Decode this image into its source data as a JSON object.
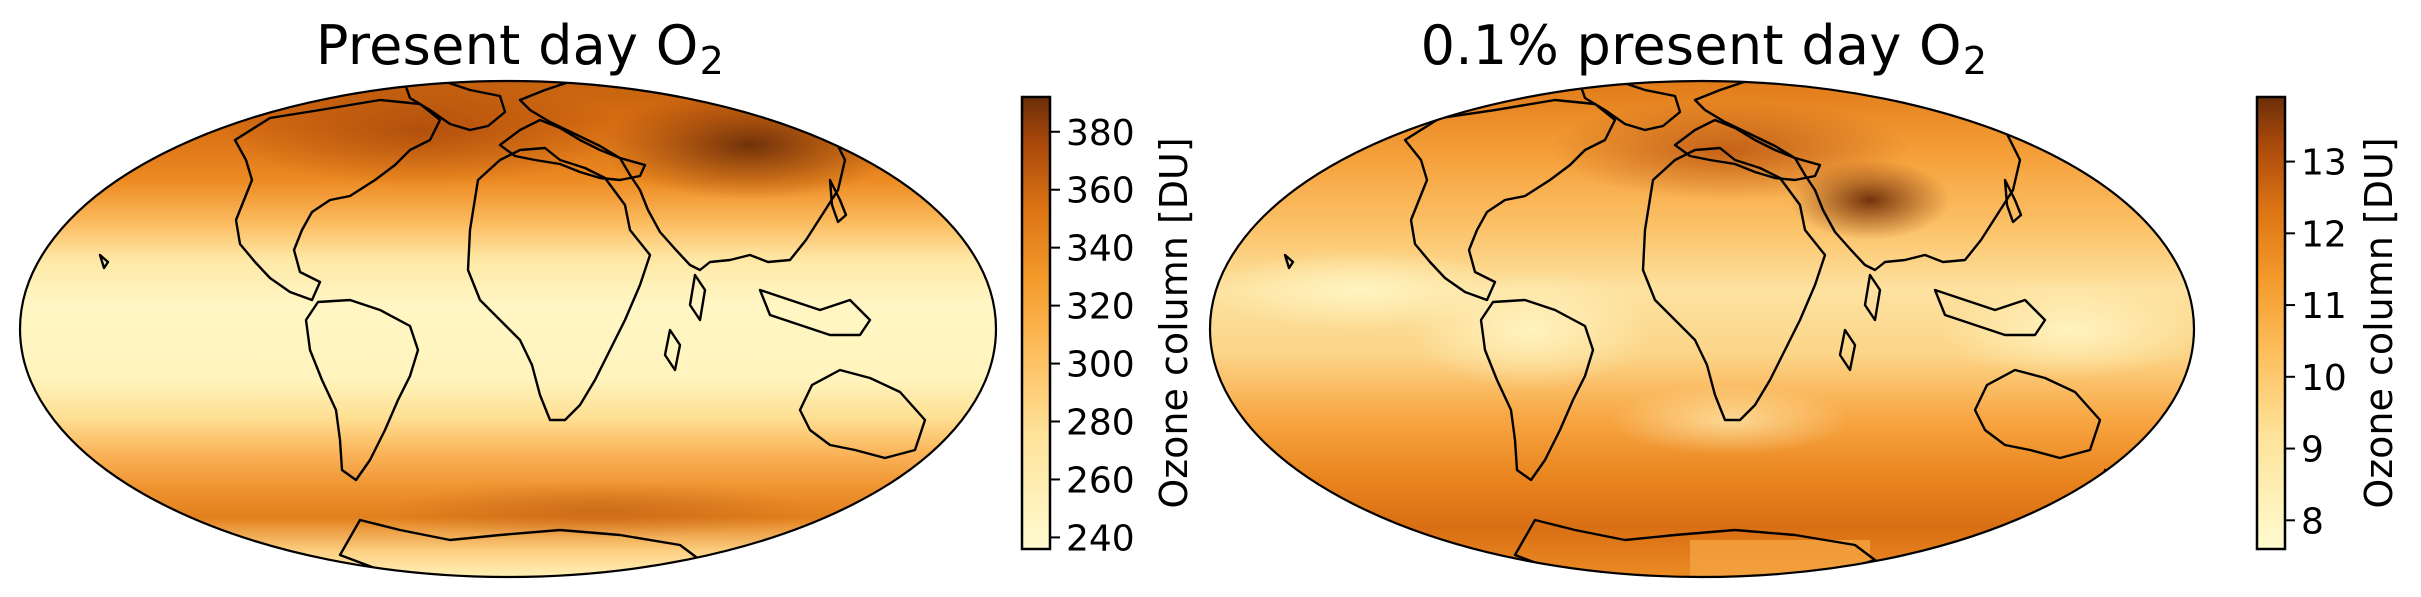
{
  "panels": [
    {
      "title": "Present day O",
      "title_sub": "2",
      "colorbar": {
        "label": "Ozone column [DU]",
        "range": [
          236,
          392
        ],
        "ticks": [
          "240",
          "260",
          "280",
          "300",
          "320",
          "340",
          "360",
          "380"
        ],
        "tick_values": [
          240,
          260,
          280,
          300,
          320,
          340,
          360,
          380
        ]
      },
      "colormap": "YlOrBr",
      "colors": {
        "low": "#fffbd0",
        "mid": "#f39a2a",
        "high": "#6a2e08"
      }
    },
    {
      "title": "0.1% present day O",
      "title_sub": "2",
      "colorbar": {
        "label": "Ozone column [DU]",
        "range": [
          7.6,
          13.9
        ],
        "ticks": [
          "8",
          "9",
          "10",
          "11",
          "12",
          "13"
        ],
        "tick_values": [
          8,
          9,
          10,
          11,
          12,
          13
        ]
      },
      "colormap": "YlOrBr",
      "colors": {
        "low": "#fffbd0",
        "mid": "#f39a2a",
        "high": "#6a2e08"
      }
    }
  ]
}
